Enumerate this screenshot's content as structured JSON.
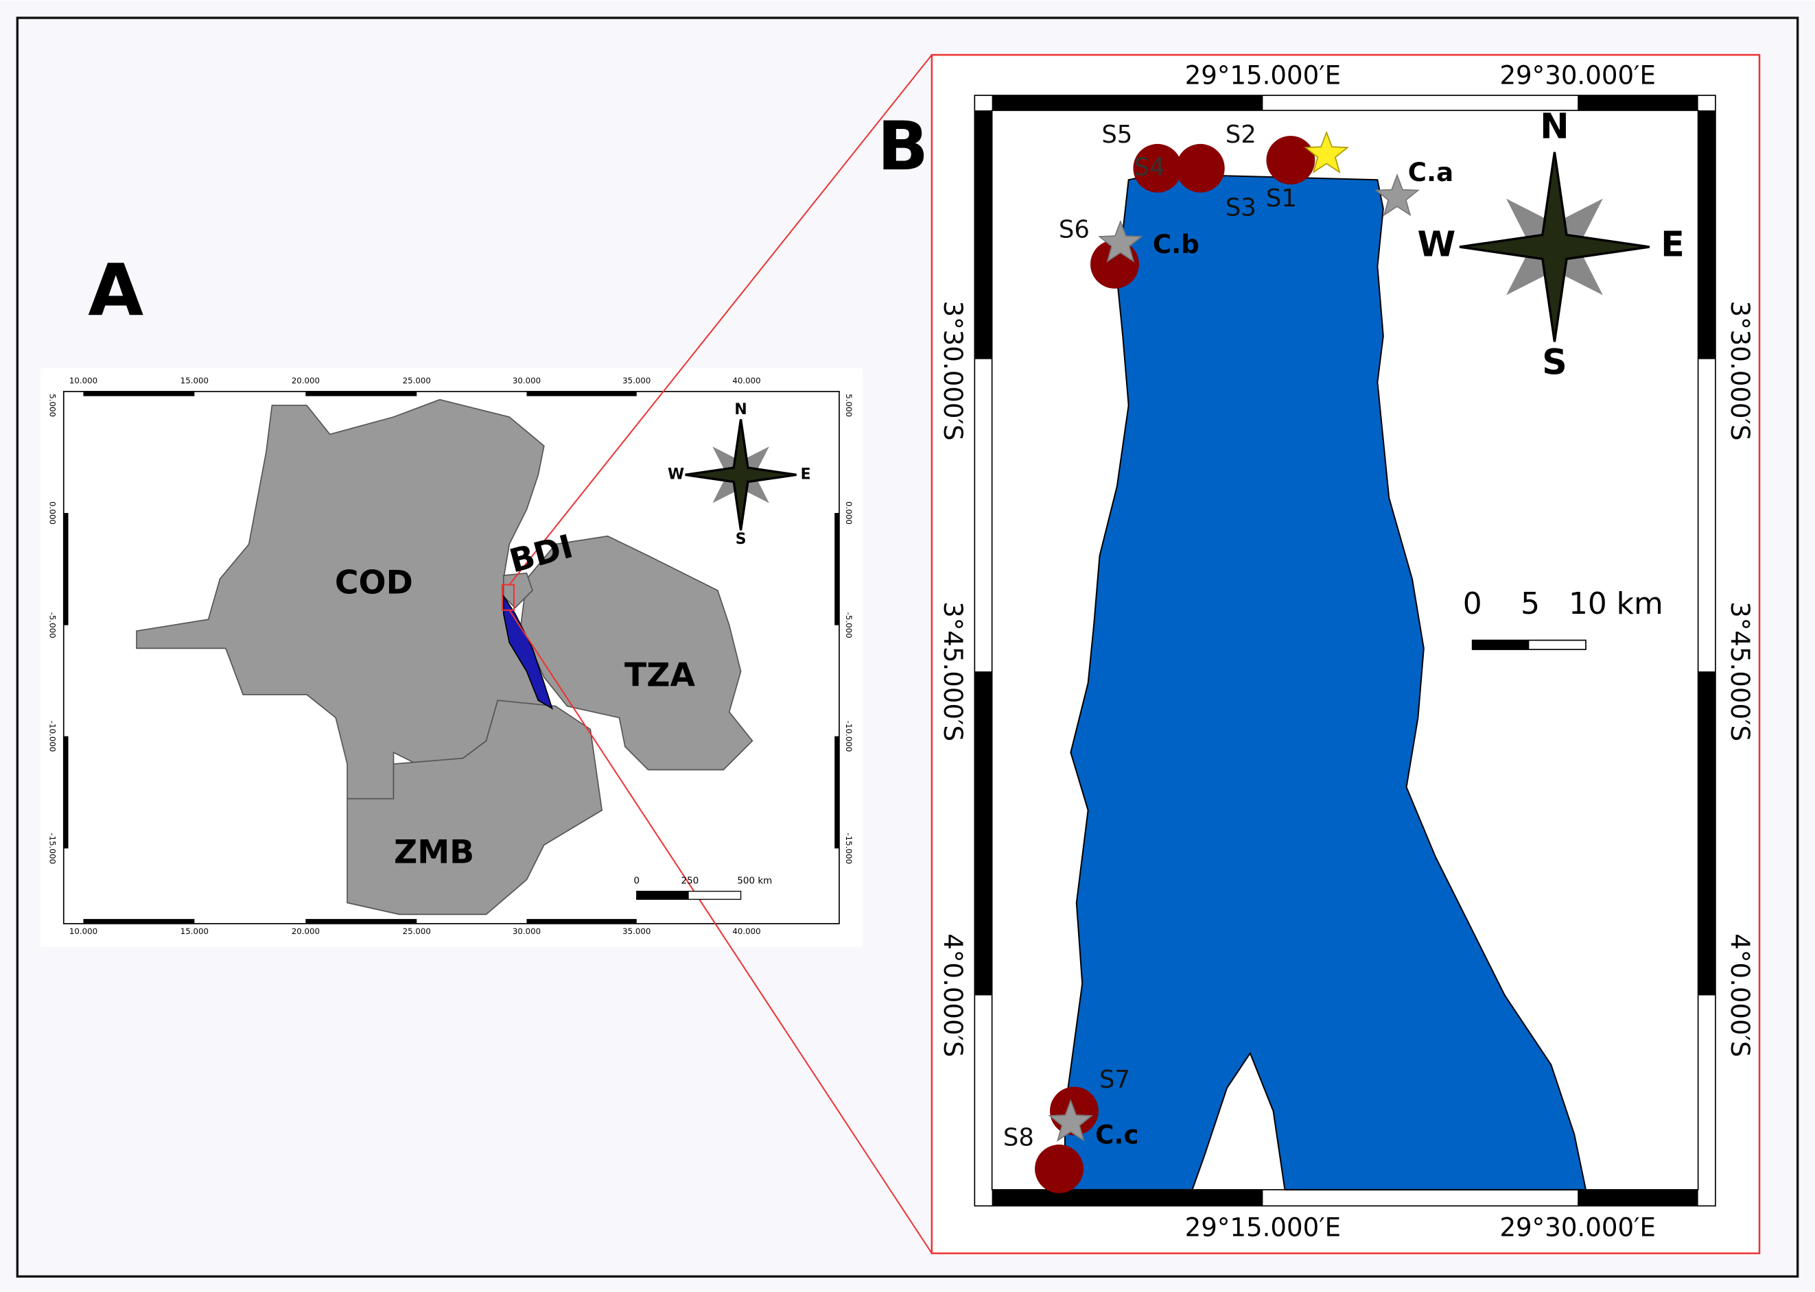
{
  "panel_a": {
    "label": "A",
    "x_ticks": [
      "10.000",
      "15.000",
      "20.000",
      "25.000",
      "30.000",
      "35.000",
      "40.000"
    ],
    "y_ticks": [
      "5.000",
      "0.000",
      "-5.000",
      "-10.000",
      "-15.000"
    ],
    "countries": [
      "COD",
      "BDI",
      "TZA",
      "ZMB"
    ],
    "compass": [
      "N",
      "S",
      "W",
      "E"
    ],
    "scale": [
      "0",
      "250",
      "500 km"
    ]
  },
  "panel_b": {
    "label": "B",
    "x_ticks": [
      "29°15.000′E",
      "29°30.000′E"
    ],
    "y_ticks": [
      "3°30.000′S",
      "3°45.000′S",
      "4°0.000′S"
    ],
    "sites": [
      "S1",
      "S2",
      "S3",
      "S4",
      "S5",
      "S6",
      "S7",
      "S8"
    ],
    "controls": [
      "C.a",
      "C.b",
      "C.c"
    ],
    "compass": [
      "N",
      "S",
      "W",
      "E"
    ],
    "scale": [
      "0",
      "5",
      "10 km"
    ]
  }
}
